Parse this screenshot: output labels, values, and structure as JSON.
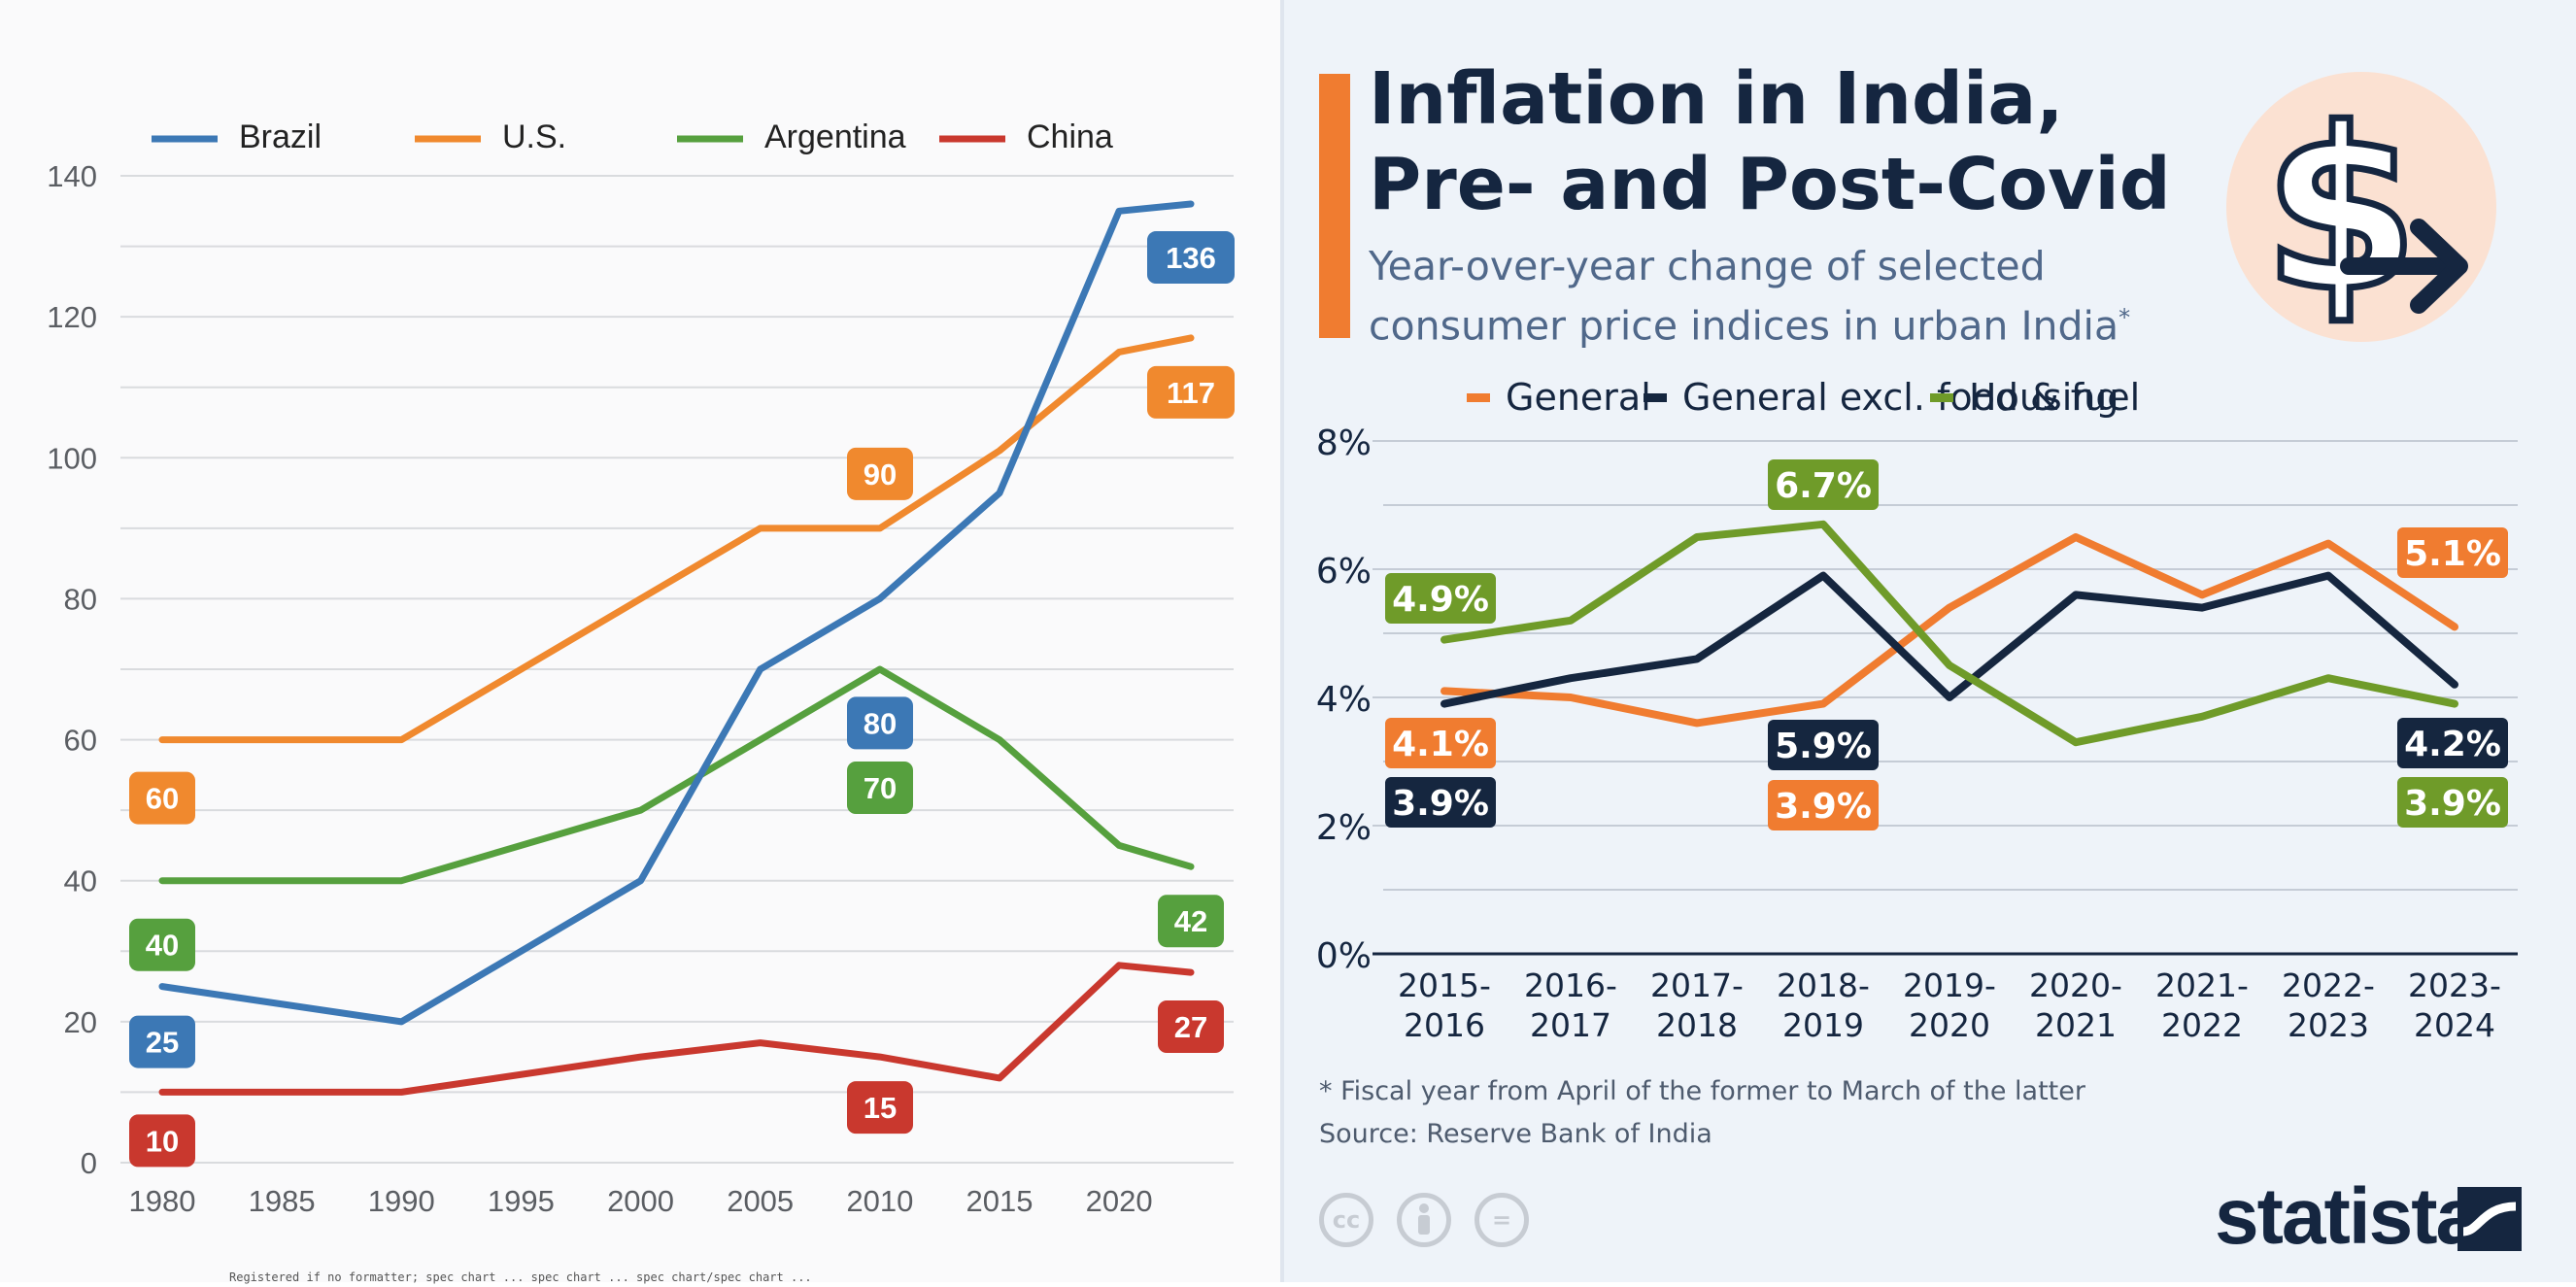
{
  "chart_data": [
    {
      "type": "line",
      "x": [
        1980,
        1990,
        2000,
        2005,
        2010,
        2015,
        2020,
        2023
      ],
      "xticks": [
        "1980",
        "1985",
        "1990",
        "1995",
        "2000",
        "2005",
        "2010",
        "2015",
        "2020"
      ],
      "yticks": [
        "0",
        "20",
        "40",
        "60",
        "80",
        "100",
        "120",
        "140"
      ],
      "ylim": [
        0,
        140
      ],
      "legend_position": "top",
      "series": [
        {
          "name": "Brazil",
          "color": "#3c78b5",
          "values": [
            25,
            20,
            40,
            70,
            80,
            95,
            135,
            136
          ]
        },
        {
          "name": "U.S.",
          "color": "#f0892e",
          "values": [
            60,
            60,
            80,
            90,
            90,
            101,
            115,
            117
          ]
        },
        {
          "name": "Argentina",
          "color": "#56a03e",
          "values": [
            40,
            40,
            50,
            60,
            70,
            60,
            45,
            42
          ]
        },
        {
          "name": "China",
          "color": "#c9382e",
          "values": [
            10,
            10,
            15,
            17,
            15,
            12,
            28,
            27
          ]
        }
      ],
      "labels": [
        {
          "series": "U.S.",
          "x": 1980,
          "text": "60"
        },
        {
          "series": "Argentina",
          "x": 1980,
          "text": "40"
        },
        {
          "series": "Brazil",
          "x": 1980,
          "text": "25"
        },
        {
          "series": "China",
          "x": 1980,
          "text": "10"
        },
        {
          "series": "U.S.",
          "x": 2010,
          "text": "90"
        },
        {
          "series": "Brazil",
          "x": 2010,
          "text": "80"
        },
        {
          "series": "Argentina",
          "x": 2010,
          "text": "70"
        },
        {
          "series": "China",
          "x": 2010,
          "text": "15"
        },
        {
          "series": "Brazil",
          "x": 2023,
          "text": "136"
        },
        {
          "series": "U.S.",
          "x": 2023,
          "text": "117"
        },
        {
          "series": "Argentina",
          "x": 2023,
          "text": "42"
        },
        {
          "series": "China",
          "x": 2023,
          "text": "27"
        }
      ]
    },
    {
      "type": "line",
      "title": "Inflation in India, Pre- and Post-Covid",
      "subtitle": "Year-over-year change of selected consumer price indices in urban India",
      "subtitle_marker": "*",
      "categories": [
        [
          "2015-",
          "2016"
        ],
        [
          "2016-",
          "2017"
        ],
        [
          "2017-",
          "2018"
        ],
        [
          "2018-",
          "2019"
        ],
        [
          "2019-",
          "2020"
        ],
        [
          "2020-",
          "2021"
        ],
        [
          "2021-",
          "2022"
        ],
        [
          "2022-",
          "2023"
        ],
        [
          "2023-",
          "2024"
        ]
      ],
      "yticks": [
        "0%",
        "2%",
        "4%",
        "6%",
        "8%"
      ],
      "ylim": [
        0,
        8
      ],
      "legend_position": "top",
      "series": [
        {
          "name": "General",
          "color": "#f07c30",
          "values": [
            4.1,
            4.0,
            3.6,
            3.9,
            5.4,
            6.5,
            5.6,
            6.4,
            5.1
          ]
        },
        {
          "name": "General excl. food & fuel",
          "color": "#15263f",
          "values": [
            3.9,
            4.3,
            4.6,
            5.9,
            4.0,
            5.6,
            5.4,
            5.9,
            4.2
          ]
        },
        {
          "name": "Housing",
          "color": "#6f9b29",
          "values": [
            4.9,
            5.2,
            6.5,
            6.7,
            4.5,
            3.3,
            3.7,
            4.3,
            3.9
          ]
        }
      ],
      "labels": [
        {
          "series": "Housing",
          "index": 0,
          "text": "4.9%"
        },
        {
          "series": "General",
          "index": 0,
          "text": "4.1%"
        },
        {
          "series": "General excl. food & fuel",
          "index": 0,
          "text": "3.9%"
        },
        {
          "series": "Housing",
          "index": 3,
          "text": "6.7%"
        },
        {
          "series": "General excl. food & fuel",
          "index": 3,
          "text": "5.9%"
        },
        {
          "series": "General",
          "index": 3,
          "text": "3.9%"
        },
        {
          "series": "General",
          "index": 8,
          "text": "5.1%"
        },
        {
          "series": "General excl. food & fuel",
          "index": 8,
          "text": "4.2%"
        },
        {
          "series": "Housing",
          "index": 8,
          "text": "3.9%"
        }
      ]
    }
  ],
  "infographic": {
    "footnote": "* Fiscal year from April of the former to March of the latter",
    "source": "Source: Reserve Bank of India",
    "brand": "statista",
    "license_icons": [
      "cc",
      "by",
      "="
    ],
    "header_icon": "dollar-down-arrow-icon"
  },
  "bottom_strip_text": "Registered if no formatter; spec chart ... spec chart ... spec chart/spec chart ..."
}
